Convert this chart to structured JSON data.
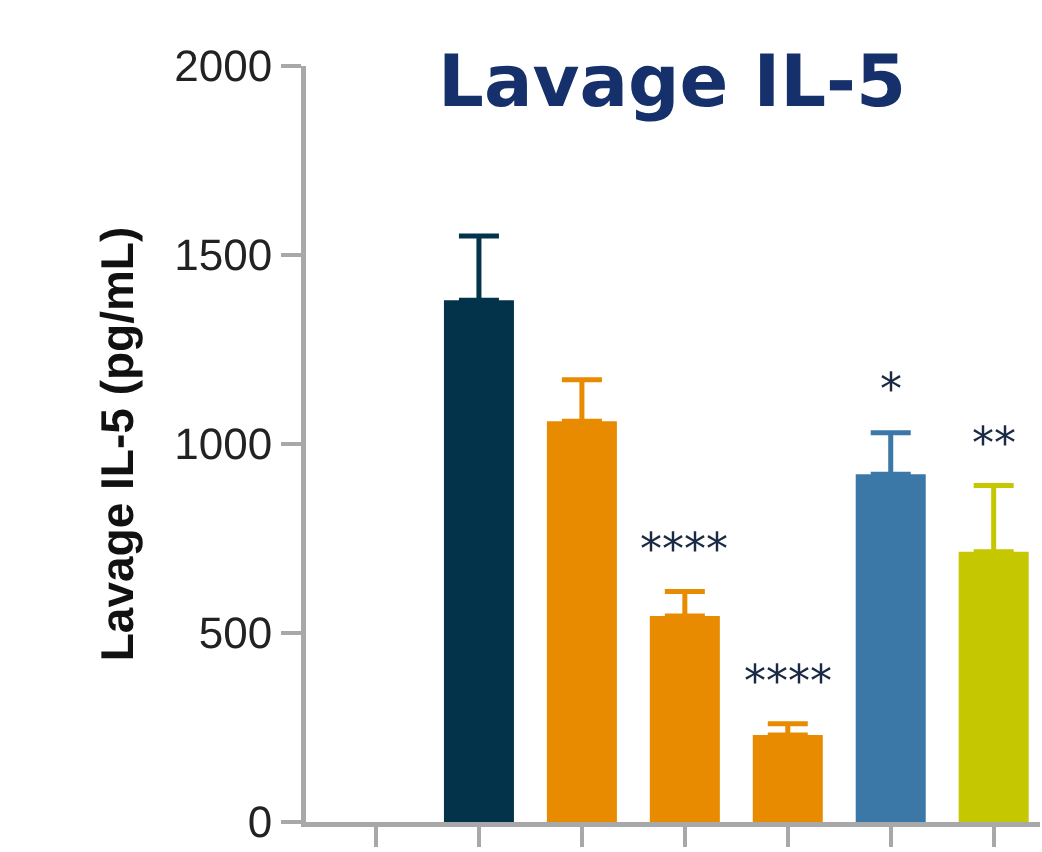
{
  "chart_data": {
    "type": "bar",
    "title": "Lavage IL-5",
    "ylabel": "Lavage IL-5 (pg/mL)",
    "categories": [
      null,
      null,
      null,
      null,
      null,
      null,
      null
    ],
    "values": [
      null,
      1380,
      1060,
      545,
      230,
      920,
      715
    ],
    "colors": [
      "#02334a",
      "#02334a",
      "#e88b00",
      "#e88b00",
      "#e88b00",
      "#3b78a8",
      "#c5c800"
    ],
    "errors": [
      null,
      [
        1380,
        1550
      ],
      [
        1060,
        1170
      ],
      [
        545,
        610
      ],
      [
        230,
        260
      ],
      [
        920,
        1030
      ],
      [
        715,
        890
      ]
    ],
    "value_labels": [
      null,
      null,
      null,
      "****",
      "****",
      "*",
      "**"
    ],
    "ylim": [
      0,
      2000
    ],
    "yticks": [
      0,
      500,
      1000,
      1500,
      2000
    ],
    "tick_labels": "y"
  }
}
